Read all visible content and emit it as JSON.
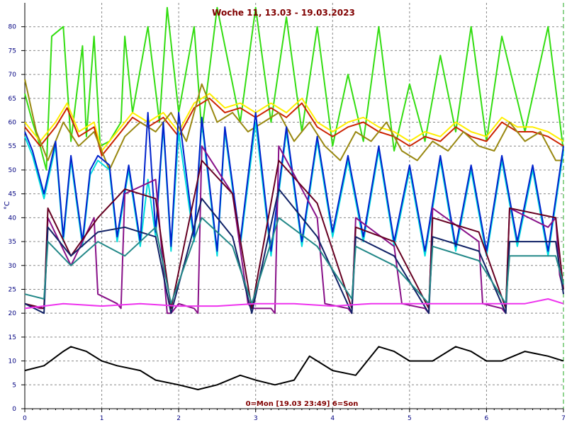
{
  "chart_data": {
    "type": "line",
    "title": "Woche 11, 13.03 - 19.03.2023",
    "footer": "0=Mon [19.03 23:49] 6=Son",
    "ylabel": "°C",
    "xlim": [
      0,
      7
    ],
    "ylim": [
      0,
      85
    ],
    "x_ticks": [
      "0",
      "1",
      "2",
      "3",
      "4",
      "5",
      "6",
      "7"
    ],
    "y_ticks": [
      "0",
      "5",
      "10",
      "15",
      "20",
      "25",
      "30",
      "35",
      "40",
      "45",
      "50",
      "55",
      "60",
      "65",
      "70",
      "75",
      "80"
    ],
    "grid": true,
    "series": [
      {
        "color": "#33dd11",
        "x": [
          0,
          0.1,
          0.2,
          0.28,
          0.35,
          0.5,
          0.6,
          0.75,
          0.8,
          0.9,
          0.98,
          1.1,
          1.25,
          1.3,
          1.4,
          1.6,
          1.75,
          1.85,
          2.0,
          2.2,
          2.3,
          2.5,
          2.8,
          3.0,
          3.2,
          3.4,
          3.6,
          3.8,
          4.0,
          4.2,
          4.4,
          4.6,
          4.8,
          5.0,
          5.2,
          5.4,
          5.6,
          5.8,
          6.0,
          6.2,
          6.5,
          6.8,
          7.0
        ],
        "values": [
          66,
          60,
          55,
          50,
          78,
          80,
          56,
          76,
          57,
          78,
          55,
          56,
          60,
          78,
          62,
          80,
          60,
          84,
          62,
          80,
          58,
          84,
          60,
          84,
          60,
          82,
          58,
          80,
          55,
          70,
          56,
          80,
          54,
          68,
          56,
          74,
          58,
          80,
          56,
          78,
          58,
          80,
          54
        ]
      },
      {
        "color": "#ffee00",
        "x": [
          0,
          0.2,
          0.4,
          0.55,
          0.7,
          0.9,
          1.0,
          1.2,
          1.4,
          1.6,
          1.8,
          2.0,
          2.2,
          2.4,
          2.6,
          2.8,
          3.0,
          3.2,
          3.4,
          3.6,
          3.8,
          4.0,
          4.2,
          4.4,
          4.6,
          4.8,
          5.0,
          5.2,
          5.4,
          5.6,
          5.8,
          6.0,
          6.2,
          6.4,
          6.6,
          6.8,
          7.0
        ],
        "values": [
          60,
          56,
          60,
          64,
          58,
          60,
          54,
          58,
          62,
          60,
          62,
          58,
          64,
          66,
          63,
          64,
          62,
          64,
          62,
          65,
          60,
          58,
          60,
          61,
          59,
          58,
          56,
          58,
          57,
          60,
          58,
          57,
          61,
          59,
          59,
          58,
          56
        ]
      },
      {
        "color": "#cc2200",
        "x": [
          0,
          0.2,
          0.4,
          0.55,
          0.7,
          0.9,
          1.0,
          1.2,
          1.4,
          1.6,
          1.8,
          2.0,
          2.2,
          2.4,
          2.6,
          2.8,
          3.0,
          3.2,
          3.4,
          3.6,
          3.8,
          4.0,
          4.2,
          4.4,
          4.6,
          4.8,
          5.0,
          5.2,
          5.4,
          5.6,
          5.8,
          6.0,
          6.2,
          6.4,
          6.6,
          6.8,
          7.0
        ],
        "values": [
          59,
          55,
          59,
          63,
          57,
          59,
          53,
          57,
          61,
          59,
          61,
          57,
          63,
          65,
          62,
          63,
          61,
          63,
          61,
          64,
          59,
          57,
          59,
          60,
          58,
          57,
          55,
          57,
          56,
          59,
          57,
          56,
          60,
          58,
          58,
          57,
          55
        ]
      },
      {
        "color": "#998811",
        "x": [
          0,
          0.15,
          0.3,
          0.5,
          0.7,
          0.9,
          1.1,
          1.3,
          1.5,
          1.7,
          1.9,
          2.1,
          2.3,
          2.5,
          2.7,
          2.9,
          3.1,
          3.3,
          3.5,
          3.7,
          3.9,
          4.1,
          4.3,
          4.5,
          4.7,
          4.9,
          5.1,
          5.3,
          5.5,
          5.7,
          5.9,
          6.1,
          6.3,
          6.5,
          6.7,
          6.9,
          7.0
        ],
        "values": [
          69,
          58,
          52,
          60,
          55,
          58,
          50,
          57,
          60,
          58,
          62,
          56,
          68,
          60,
          62,
          58,
          60,
          62,
          56,
          60,
          55,
          52,
          58,
          56,
          60,
          54,
          52,
          56,
          54,
          58,
          55,
          54,
          60,
          56,
          58,
          52,
          52
        ]
      },
      {
        "color": "#00dddd",
        "x": [
          0,
          0.1,
          0.25,
          0.4,
          0.5,
          0.6,
          0.75,
          0.85,
          0.95,
          1.1,
          1.2,
          1.35,
          1.5,
          1.6,
          1.7,
          1.8,
          1.9,
          2.0,
          2.2,
          2.3,
          2.5,
          2.6,
          2.8,
          3.0,
          3.2,
          3.4,
          3.6,
          3.8,
          4.0,
          4.2,
          4.4,
          4.6,
          4.8,
          5.0,
          5.2,
          5.4,
          5.6,
          5.8,
          6.0,
          6.2,
          6.4,
          6.6,
          6.8,
          7.0
        ],
        "values": [
          57,
          53,
          44,
          55,
          35,
          52,
          34,
          49,
          52,
          50,
          35,
          50,
          34,
          48,
          36,
          59,
          33,
          58,
          35,
          60,
          32,
          58,
          34,
          60,
          32,
          58,
          34,
          56,
          36,
          52,
          35,
          54,
          34,
          50,
          32,
          52,
          33,
          50,
          32,
          52,
          34,
          50,
          32,
          54
        ]
      },
      {
        "color": "#0022cc",
        "x": [
          0,
          0.1,
          0.25,
          0.4,
          0.5,
          0.6,
          0.75,
          0.85,
          0.95,
          1.1,
          1.2,
          1.35,
          1.5,
          1.6,
          1.7,
          1.8,
          1.9,
          2.0,
          2.2,
          2.3,
          2.5,
          2.6,
          2.8,
          3.0,
          3.2,
          3.4,
          3.6,
          3.8,
          4.0,
          4.2,
          4.4,
          4.6,
          4.8,
          5.0,
          5.2,
          5.4,
          5.6,
          5.8,
          6.0,
          6.2,
          6.4,
          6.6,
          6.8,
          7.0
        ],
        "values": [
          58,
          54,
          45,
          56,
          36,
          53,
          35,
          50,
          53,
          51,
          36,
          51,
          35,
          62,
          37,
          60,
          34,
          62,
          36,
          61,
          33,
          59,
          35,
          62,
          33,
          59,
          35,
          57,
          37,
          53,
          36,
          55,
          35,
          51,
          33,
          53,
          34,
          51,
          33,
          53,
          35,
          51,
          33,
          55
        ]
      },
      {
        "color": "#881188",
        "x": [
          0,
          0.2,
          0.25,
          0.3,
          0.6,
          0.9,
          0.95,
          1.2,
          1.25,
          1.3,
          1.7,
          1.85,
          1.9,
          2.0,
          2.2,
          2.25,
          2.3,
          2.7,
          2.9,
          2.95,
          3.2,
          3.25,
          3.3,
          3.8,
          3.9,
          4.2,
          4.25,
          4.3,
          4.8,
          4.9,
          5.2,
          5.25,
          5.3,
          5.9,
          5.95,
          6.2,
          6.25,
          6.3,
          6.8,
          6.9,
          6.95,
          7.0
        ],
        "values": [
          22,
          21,
          21,
          40,
          30,
          40,
          24,
          22,
          21,
          45,
          48,
          20,
          20,
          22,
          21,
          20,
          55,
          45,
          22,
          21,
          21,
          20,
          55,
          40,
          22,
          21,
          20,
          40,
          34,
          22,
          21,
          20,
          42,
          35,
          22,
          21,
          20,
          42,
          38,
          40,
          28,
          25
        ]
      },
      {
        "color": "#660022",
        "x": [
          0,
          0.25,
          0.3,
          0.6,
          0.95,
          1.3,
          1.7,
          1.9,
          2.3,
          2.7,
          2.95,
          3.3,
          3.8,
          4.25,
          4.3,
          4.8,
          5.25,
          5.3,
          5.9,
          6.25,
          6.3,
          6.9,
          7.0
        ],
        "values": [
          22,
          21,
          42,
          32,
          40,
          46,
          44,
          21,
          52,
          45,
          21,
          52,
          43,
          21,
          38,
          35,
          21,
          40,
          37,
          21,
          42,
          40,
          25
        ]
      },
      {
        "color": "#112266",
        "x": [
          0,
          0.25,
          0.3,
          0.6,
          0.95,
          1.3,
          1.7,
          1.9,
          2.3,
          2.7,
          2.95,
          3.3,
          3.8,
          4.25,
          4.3,
          4.8,
          5.25,
          5.3,
          5.9,
          6.25,
          6.3,
          6.9,
          7.0
        ],
        "values": [
          22,
          20,
          38,
          32,
          37,
          38,
          36,
          20,
          44,
          36,
          20,
          46,
          36,
          20,
          36,
          32,
          20,
          36,
          33,
          20,
          35,
          35,
          24
        ]
      },
      {
        "color": "#228888",
        "x": [
          0,
          0.25,
          0.3,
          0.6,
          0.95,
          1.3,
          1.7,
          1.9,
          2.3,
          2.7,
          2.95,
          3.3,
          3.8,
          4.25,
          4.3,
          4.8,
          5.25,
          5.3,
          5.9,
          6.25,
          6.3,
          6.9,
          7.0
        ],
        "values": [
          24,
          23,
          35,
          30,
          35,
          32,
          38,
          22,
          40,
          34,
          22,
          40,
          34,
          23,
          34,
          30,
          22,
          34,
          31,
          22,
          32,
          32,
          26
        ]
      },
      {
        "color": "#ee33ee",
        "x": [
          0,
          0.5,
          1.0,
          1.5,
          2.0,
          2.5,
          3.0,
          3.5,
          4.0,
          4.5,
          5.0,
          5.5,
          6.0,
          6.5,
          6.8,
          7.0
        ],
        "values": [
          21,
          22,
          21.5,
          22,
          21.5,
          21.5,
          22,
          22,
          21.5,
          22,
          22,
          22,
          22,
          22,
          23,
          22
        ]
      },
      {
        "color": "#000000",
        "x": [
          0,
          0.25,
          0.5,
          0.6,
          0.8,
          1.0,
          1.2,
          1.5,
          1.7,
          2.0,
          2.25,
          2.5,
          2.8,
          3.0,
          3.25,
          3.5,
          3.7,
          4.0,
          4.3,
          4.6,
          4.8,
          5.0,
          5.3,
          5.6,
          5.8,
          6.0,
          6.2,
          6.5,
          6.8,
          7.0
        ],
        "values": [
          8,
          9,
          12,
          13,
          12,
          10,
          9,
          8,
          6,
          5,
          4,
          5,
          7,
          6,
          5,
          6,
          11,
          8,
          7,
          13,
          12,
          10,
          10,
          13,
          12,
          10,
          10,
          12,
          11,
          10
        ]
      }
    ]
  }
}
